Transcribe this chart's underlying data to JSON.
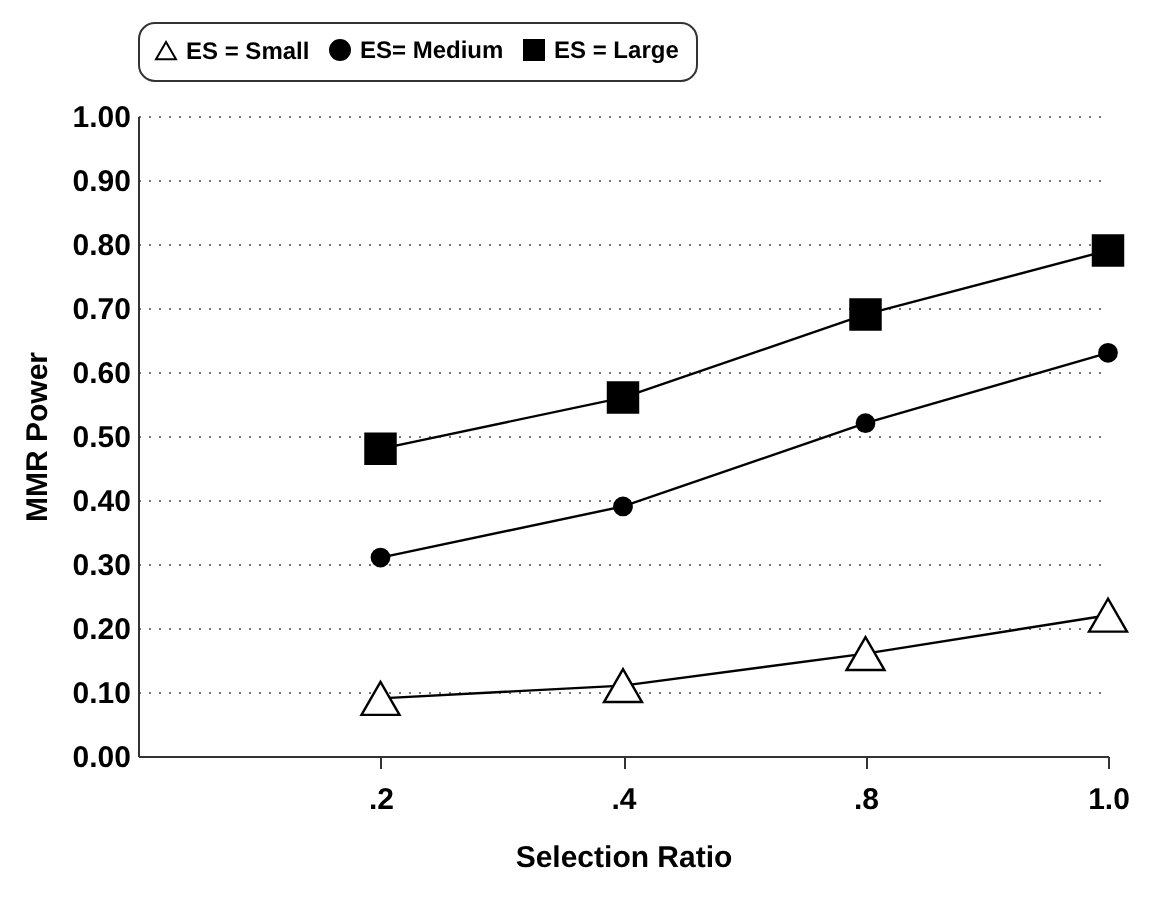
{
  "chart_data": {
    "type": "line",
    "xlabel": "Selection Ratio",
    "ylabel": "MMR Power",
    "categories": [
      ".2",
      ".4",
      ".8",
      "1.0"
    ],
    "series": [
      {
        "name": "ES = Small",
        "color": "#000000",
        "marker": "triangle",
        "values": [
          0.09,
          0.11,
          0.16,
          0.22
        ]
      },
      {
        "name": "ES= Medium",
        "color": "#000000",
        "marker": "circle",
        "values": [
          0.31,
          0.39,
          0.52,
          0.63
        ]
      },
      {
        "name": "ES = Large",
        "color": "#000000",
        "marker": "square",
        "values": [
          0.48,
          0.56,
          0.69,
          0.79
        ]
      }
    ],
    "ylim": [
      0,
      1
    ],
    "yticks": [
      {
        "value": 0,
        "label": "0.00"
      },
      {
        "value": 0.1,
        "label": "0.10"
      },
      {
        "value": 0.2,
        "label": "0.20"
      },
      {
        "value": 0.3,
        "label": "0.30"
      },
      {
        "value": 0.4,
        "label": "0.40"
      },
      {
        "value": 0.5,
        "label": "0.50"
      },
      {
        "value": 0.6,
        "label": "0.60"
      },
      {
        "value": 0.7,
        "label": "0.70"
      },
      {
        "value": 0.8,
        "label": "0.80"
      },
      {
        "value": 0.9,
        "label": "0.90"
      },
      {
        "value": 1,
        "label": "1.00"
      }
    ],
    "grid": "y",
    "legend": "top",
    "line_style": "solid"
  }
}
